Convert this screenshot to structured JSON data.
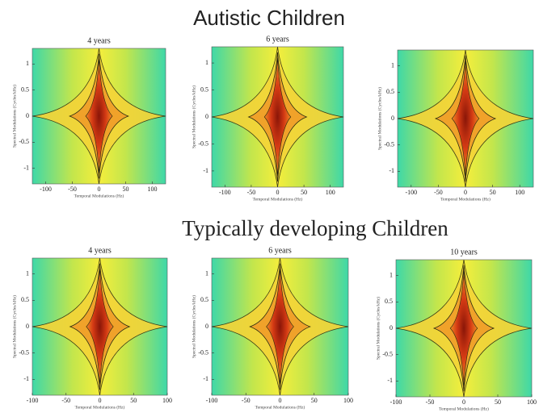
{
  "figure_titles": [
    "Autistic Children",
    "Typically developing Children"
  ],
  "chart_data": [
    {
      "type": "heatmap",
      "title": "4 years",
      "xlabel": "Temporal Modulations (Hz)",
      "ylabel": "Spectral Modulations (Cycles/kHz)",
      "xlim": [
        -125,
        125
      ],
      "ylim": [
        -1.3,
        1.3
      ],
      "xticks": [
        -100,
        -50,
        0,
        50,
        100
      ],
      "yticks": [
        -1,
        -0.5,
        0,
        0.5,
        1
      ]
    },
    {
      "type": "heatmap",
      "title": "6 years",
      "xlabel": "Temporal Modulations (Hz)",
      "ylabel": "Spectral Modulations (Cycles/kHz)",
      "xlim": [
        -125,
        125
      ],
      "ylim": [
        -1.3,
        1.3
      ],
      "xticks": [
        -100,
        -50,
        0,
        50,
        100
      ],
      "yticks": [
        -1,
        -0.5,
        0,
        0.5,
        1
      ]
    },
    {
      "type": "heatmap",
      "xlabel": "Temporal Modulations (Hz)",
      "ylabel": "Spectral Modulations (Cycles/kHz)",
      "xlim": [
        -125,
        125
      ],
      "ylim": [
        -1.3,
        1.3
      ],
      "xticks": [
        -100,
        -50,
        0,
        50,
        100
      ],
      "yticks": [
        -1,
        -0.5,
        0,
        0.5,
        1
      ]
    },
    {
      "type": "heatmap",
      "title": "4 years",
      "xlabel": "Temporal Modulations (Hz)",
      "ylabel": "Spectral Modulations (Cycles/kHz)",
      "xlim": [
        -100,
        100
      ],
      "ylim": [
        -1.3,
        1.3
      ],
      "xticks": [
        -100,
        -50,
        0,
        50,
        100
      ],
      "yticks": [
        -1,
        -0.5,
        0,
        0.5,
        1
      ]
    },
    {
      "type": "heatmap",
      "title": "6 years",
      "xlabel": "Temporal Modulations (Hz)",
      "ylabel": "Spectral Modulations (Cycles/kHz)",
      "xlim": [
        -100,
        100
      ],
      "ylim": [
        -1.3,
        1.3
      ],
      "xticks": [
        -100,
        -50,
        0,
        50,
        100
      ],
      "yticks": [
        -1,
        -0.5,
        0,
        0.5,
        1
      ]
    },
    {
      "type": "heatmap",
      "title": "10 years",
      "xlabel": "Temporal Modulations (Hz)",
      "ylabel": "Spectral Modulations (Cycles/kHz)",
      "xlim": [
        -100,
        100
      ],
      "ylim": [
        -1.3,
        1.3
      ],
      "xticks": [
        -100,
        -50,
        0,
        50,
        100
      ],
      "yticks": [
        -1,
        -0.5,
        0,
        0.5,
        1
      ]
    }
  ]
}
